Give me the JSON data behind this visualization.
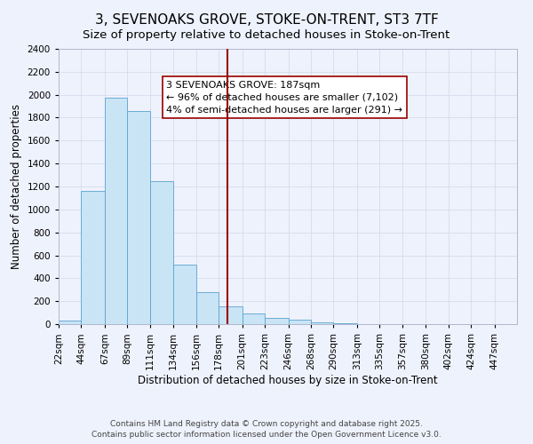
{
  "title": "3, SEVENOAKS GROVE, STOKE-ON-TRENT, ST3 7TF",
  "subtitle": "Size of property relative to detached houses in Stoke-on-Trent",
  "xlabel": "Distribution of detached houses by size in Stoke-on-Trent",
  "ylabel": "Number of detached properties",
  "footer_line1": "Contains HM Land Registry data © Crown copyright and database right 2025.",
  "footer_line2": "Contains public sector information licensed under the Open Government Licence v3.0.",
  "bar_edges": [
    22,
    44,
    67,
    89,
    111,
    134,
    156,
    178,
    201,
    223,
    246,
    268,
    290,
    313,
    335,
    357,
    380,
    402,
    424,
    447,
    469
  ],
  "bar_heights": [
    30,
    1165,
    1975,
    1855,
    1250,
    520,
    275,
    155,
    90,
    55,
    40,
    15,
    5,
    3,
    2,
    1,
    1,
    0,
    0,
    0
  ],
  "bar_color": "#c9e4f5",
  "bar_edgecolor": "#5ba3d0",
  "vline_x": 187,
  "vline_color": "#990000",
  "annotation_line1": "3 SEVENOAKS GROVE: 187sqm",
  "annotation_line2": "← 96% of detached houses are smaller (7,102)",
  "annotation_line3": "4% of semi-detached houses are larger (291) →",
  "annotation_box_edgecolor": "#990000",
  "annotation_box_facecolor": "#ffffff",
  "ylim": [
    0,
    2400
  ],
  "yticks": [
    0,
    200,
    400,
    600,
    800,
    1000,
    1200,
    1400,
    1600,
    1800,
    2000,
    2200,
    2400
  ],
  "bg_color": "#eef2fc",
  "grid_color": "#d0d8e8",
  "title_fontsize": 11,
  "subtitle_fontsize": 9.5,
  "xlabel_fontsize": 8.5,
  "ylabel_fontsize": 8.5,
  "tick_fontsize": 7.5,
  "annotation_fontsize": 8,
  "footer_fontsize": 6.5
}
